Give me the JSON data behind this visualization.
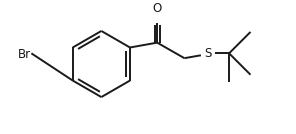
{
  "bg_color": "#ffffff",
  "line_color": "#1a1a1a",
  "line_width": 1.4,
  "figsize": [
    2.96,
    1.34
  ],
  "dpi": 100,
  "atoms": {
    "Br": {
      "label": "Br",
      "fontsize": 8.5
    },
    "O": {
      "label": "O",
      "fontsize": 8.5
    },
    "S": {
      "label": "S",
      "fontsize": 8.5
    }
  }
}
